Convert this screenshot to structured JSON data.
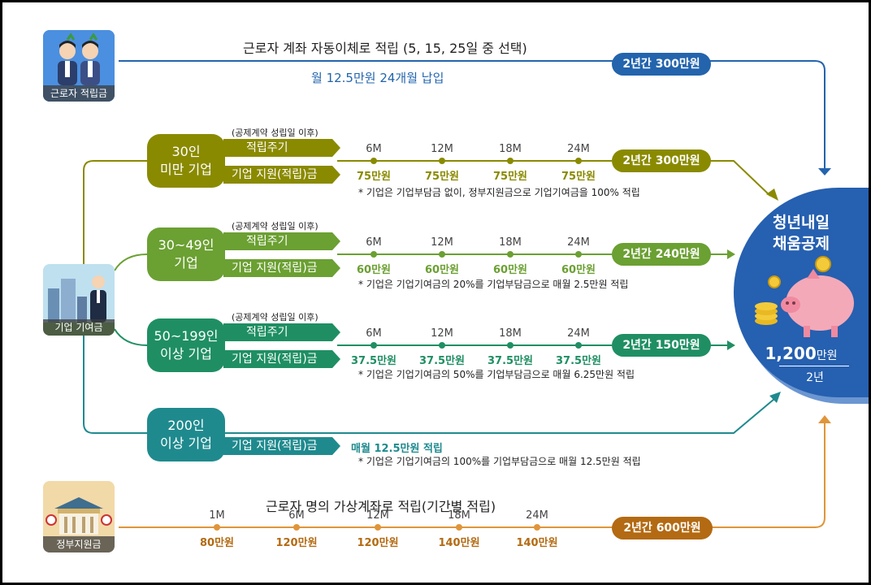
{
  "colors": {
    "worker_blue": "#2364ad",
    "c30": "#8a8a00",
    "c49": "#6ba032",
    "c199": "#1f8f63",
    "c200": "#1f8a8e",
    "gov": "#e0953a",
    "gov_dark": "#b36a12",
    "circle_blue": "#2660b0"
  },
  "worker": {
    "icon_label": "근로자 적립금",
    "headline": "근로자 계좌 자동이체로 적립 (5, 15, 25일 중 선택)",
    "sub": "월 12.5만원 24개월 납입",
    "total": "2년간 300만원"
  },
  "company": {
    "icon_label": "기업 기여금",
    "rows": [
      {
        "category_line1": "30인",
        "category_line2": "미만 기업",
        "contract_note": "(공제계약 성립일 이후)",
        "cycle_label": "적립주기",
        "support_label": "기업 지원(적립)금",
        "months": [
          "6M",
          "12M",
          "18M",
          "24M"
        ],
        "amounts": [
          "75만원",
          "75만원",
          "75만원",
          "75만원"
        ],
        "total": "2년간 300만원",
        "note": "* 기업은 기업부담금 없이, 정부지원금으로 기업기여금을 100% 적립"
      },
      {
        "category_line1": "30~49인",
        "category_line2": "기업",
        "contract_note": "(공제계약 성립일 이후)",
        "cycle_label": "적립주기",
        "support_label": "기업 지원(적립)금",
        "months": [
          "6M",
          "12M",
          "18M",
          "24M"
        ],
        "amounts": [
          "60만원",
          "60만원",
          "60만원",
          "60만원"
        ],
        "total": "2년간 240만원",
        "note": "* 기업은 기업기여금의 20%를 기업부담금으로 매월 2.5만원 적립"
      },
      {
        "category_line1": "50~199인",
        "category_line2": "이상 기업",
        "contract_note": "(공제계약 성립일 이후)",
        "cycle_label": "적립주기",
        "support_label": "기업 지원(적립)금",
        "months": [
          "6M",
          "12M",
          "18M",
          "24M"
        ],
        "amounts": [
          "37.5만원",
          "37.5만원",
          "37.5만원",
          "37.5만원"
        ],
        "total": "2년간 150만원",
        "note": "* 기업은 기업기여금의 50%를 기업부담금으로 매월 6.25만원 적립"
      }
    ],
    "large": {
      "category_line1": "200인",
      "category_line2": "이상 기업",
      "support_label": "기업 지원(적립)금",
      "monthly": "매월 12.5만원 적립",
      "note": "* 기업은 기업기여금의 100%를 기업부담금으로 매월 12.5만원 적립"
    }
  },
  "government": {
    "icon_label": "정부지원금",
    "headline": "근로자 명의 가상계좌로 적립(기간별 적립)",
    "months": [
      "1M",
      "6M",
      "12M",
      "18M",
      "24M"
    ],
    "amounts": [
      "80만원",
      "120만원",
      "120만원",
      "140만원",
      "140만원"
    ],
    "total": "2년간 600만원"
  },
  "result": {
    "title_line1": "청년내일",
    "title_line2": "채움공제",
    "amount_number": "1,200",
    "amount_unit": "만원",
    "period": "2년"
  }
}
